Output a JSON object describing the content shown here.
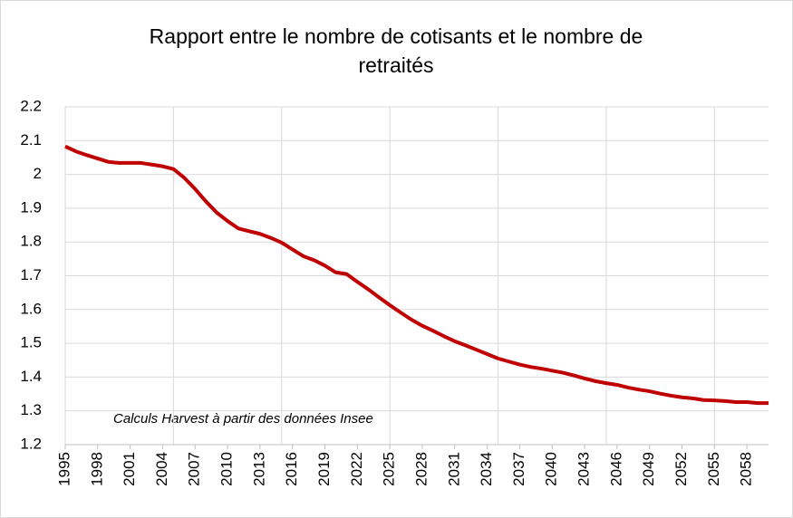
{
  "chart_data": {
    "type": "line",
    "title": "Rapport entre le nombre de cotisants et le nombre de retraités",
    "annotation": "Calculs Harvest à partir des données Insee",
    "x": [
      1995,
      1996,
      1997,
      1998,
      1999,
      2000,
      2001,
      2002,
      2003,
      2004,
      2005,
      2006,
      2007,
      2008,
      2009,
      2010,
      2011,
      2012,
      2013,
      2014,
      2015,
      2016,
      2017,
      2018,
      2019,
      2020,
      2021,
      2022,
      2023,
      2024,
      2025,
      2026,
      2027,
      2028,
      2029,
      2030,
      2031,
      2032,
      2033,
      2034,
      2035,
      2036,
      2037,
      2038,
      2039,
      2040,
      2041,
      2042,
      2043,
      2044,
      2045,
      2046,
      2047,
      2048,
      2049,
      2050,
      2051,
      2052,
      2053,
      2054,
      2055,
      2056,
      2057,
      2058,
      2059,
      2060
    ],
    "series": [
      {
        "color": "#c00000",
        "values": [
          2.083,
          2.068,
          2.057,
          2.047,
          2.037,
          2.034,
          2.034,
          2.034,
          2.029,
          2.024,
          2.016,
          1.99,
          1.957,
          1.92,
          1.887,
          1.862,
          1.84,
          1.832,
          1.824,
          1.812,
          1.798,
          1.778,
          1.758,
          1.746,
          1.73,
          1.71,
          1.705,
          1.682,
          1.66,
          1.636,
          1.613,
          1.591,
          1.57,
          1.552,
          1.537,
          1.521,
          1.506,
          1.494,
          1.481,
          1.468,
          1.455,
          1.446,
          1.437,
          1.43,
          1.425,
          1.419,
          1.413,
          1.405,
          1.396,
          1.388,
          1.382,
          1.377,
          1.369,
          1.363,
          1.358,
          1.351,
          1.345,
          1.34,
          1.337,
          1.332,
          1.331,
          1.329,
          1.326,
          1.326,
          1.323,
          1.323
        ]
      }
    ],
    "xlim": [
      1995,
      2060
    ],
    "xticks": [
      1995,
      1998,
      2001,
      2004,
      2007,
      2010,
      2013,
      2016,
      2019,
      2022,
      2025,
      2028,
      2031,
      2034,
      2037,
      2040,
      2043,
      2046,
      2049,
      2052,
      2055,
      2058
    ],
    "x_gridlines": [
      1995,
      2005,
      2015,
      2025,
      2035,
      2045,
      2055
    ],
    "ylim": [
      1.2,
      2.2
    ],
    "yticks": [
      1.2,
      1.3,
      1.4,
      1.5,
      1.6,
      1.7,
      1.8,
      1.9,
      2,
      2.1,
      2.2
    ],
    "grid": true
  }
}
